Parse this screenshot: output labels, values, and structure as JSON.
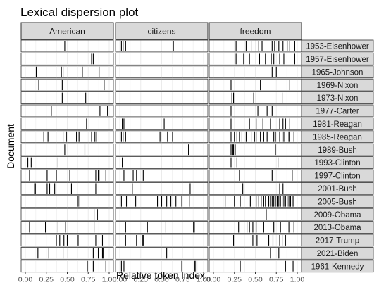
{
  "chart_data": {
    "type": "lexical-dispersion",
    "title": "Lexical dispersion plot",
    "xlabel": "Relative token index",
    "ylabel": "Document",
    "xlim": [
      0,
      1
    ],
    "x_ticks": [
      "0.00",
      "0.25",
      "0.50",
      "0.75",
      "1.00"
    ],
    "facets": [
      "American",
      "citizens",
      "freedom"
    ],
    "documents": [
      "1953-Eisenhower",
      "1957-Eisenhower",
      "1965-Johnson",
      "1969-Nixon",
      "1973-Nixon",
      "1977-Carter",
      "1981-Reagan",
      "1985-Reagan",
      "1989-Bush",
      "1993-Clinton",
      "1997-Clinton",
      "2001-Bush",
      "2005-Bush",
      "2009-Obama",
      "2013-Obama",
      "2017-Trump",
      "2021-Biden",
      "1961-Kennedy"
    ],
    "grid": true,
    "colors": {
      "mark": "#000000",
      "strip": "#d9d9d9",
      "grid": "#ebebeb",
      "border": "#333333",
      "panel_bg": "#ffffff"
    },
    "occurrences": {
      "American": [
        [
          0.47
        ],
        [
          0.79,
          0.81
        ],
        [
          0.13,
          0.43,
          0.45,
          0.68,
          0.88
        ],
        [
          0.16,
          0.44,
          0.94
        ],
        [
          0.44,
          0.72
        ],
        [
          0.31,
          0.89,
          0.98
        ],
        [
          0.73
        ],
        [
          0.22,
          0.27,
          0.45,
          0.49,
          0.61,
          0.64,
          0.79,
          0.83,
          0.85
        ],
        [
          0.47,
          0.71
        ],
        [
          0.03,
          0.07,
          0.39
        ],
        [
          0.05,
          0.26,
          0.37,
          0.53,
          0.84,
          0.87,
          0.88,
          0.96
        ],
        [
          0.11,
          0.12,
          0.26,
          0.29,
          0.35,
          0.55,
          0.84
        ],
        [
          0.63,
          0.65
        ],
        [
          0.82,
          0.86
        ],
        [
          0.05,
          0.24,
          0.39,
          0.48,
          0.82
        ],
        [
          0.37,
          0.41,
          0.46,
          0.5,
          0.63,
          0.84,
          0.92
        ],
        [
          0.15,
          0.28,
          0.45,
          0.81,
          0.87,
          0.92,
          0.93
        ],
        [
          0.74,
          0.81,
          0.96
        ]
      ],
      "citizens": [
        [
          0.02,
          0.04,
          0.07,
          0.64
        ],
        [],
        [],
        [],
        [],
        [],
        [
          0.03,
          0.05,
          0.53
        ],
        [
          0.02,
          0.04,
          0.07,
          0.48,
          0.57,
          0.63
        ],
        [
          0.82
        ],
        [
          0.03
        ],
        [
          0.05,
          0.16,
          0.2,
          0.28
        ],
        [
          0.15,
          0.84
        ],
        [
          0.02,
          0.08,
          0.19,
          0.45,
          0.5,
          0.56,
          0.61,
          0.67,
          0.74,
          0.83
        ],
        [],
        [
          0.07,
          0.33,
          0.55,
          0.88,
          0.89
        ],
        [
          0.07,
          0.2,
          0.27,
          0.28
        ],
        [
          0.56
        ],
        [
          0.02,
          0.05,
          0.74,
          0.89,
          0.9,
          0.92
        ]
      ],
      "freedom": [
        [
          0.27,
          0.39,
          0.45,
          0.54,
          0.58,
          0.7,
          0.73,
          0.78,
          0.83,
          0.88,
          0.91,
          0.97
        ],
        [
          0.27,
          0.36,
          0.43,
          0.55,
          0.62,
          0.69,
          0.72,
          0.79,
          0.84,
          0.97
        ],
        [
          0.7,
          0.75
        ],
        [
          0.21,
          0.56,
          0.91
        ],
        [
          0.22,
          0.24,
          0.48,
          0.82
        ],
        [
          0.21,
          0.53,
          0.64,
          0.7
        ],
        [
          0.21,
          0.43,
          0.51,
          0.59,
          0.68,
          0.79,
          0.83,
          0.86,
          0.91
        ],
        [
          0.21,
          0.25,
          0.28,
          0.31,
          0.34,
          0.39,
          0.45,
          0.49,
          0.51,
          0.56,
          0.6,
          0.64,
          0.72,
          0.74,
          0.79,
          0.82,
          0.84,
          0.9,
          0.91,
          0.96
        ],
        [
          0.21,
          0.23,
          0.24,
          0.26,
          0.74
        ],
        [
          0.21,
          0.28,
          0.77
        ],
        [
          0.31,
          0.7,
          0.94
        ],
        [
          0.35,
          0.79,
          0.83
        ],
        [
          0.14,
          0.25,
          0.32,
          0.44,
          0.51,
          0.54,
          0.57,
          0.6,
          0.62,
          0.66,
          0.68,
          0.7,
          0.72,
          0.74,
          0.76,
          0.78,
          0.8,
          0.82,
          0.84,
          0.86,
          0.88,
          0.9,
          0.92,
          0.95
        ],
        [
          0.63
        ],
        [
          0.3,
          0.4,
          0.43,
          0.47,
          0.51,
          0.6,
          0.72,
          0.8,
          0.9,
          0.96
        ],
        [
          0.24,
          0.47,
          0.52,
          0.66,
          0.71,
          0.79,
          0.82,
          0.86
        ],
        [
          0.68,
          0.78
        ],
        [
          0.32,
          0.86,
          0.95
        ]
      ]
    }
  }
}
